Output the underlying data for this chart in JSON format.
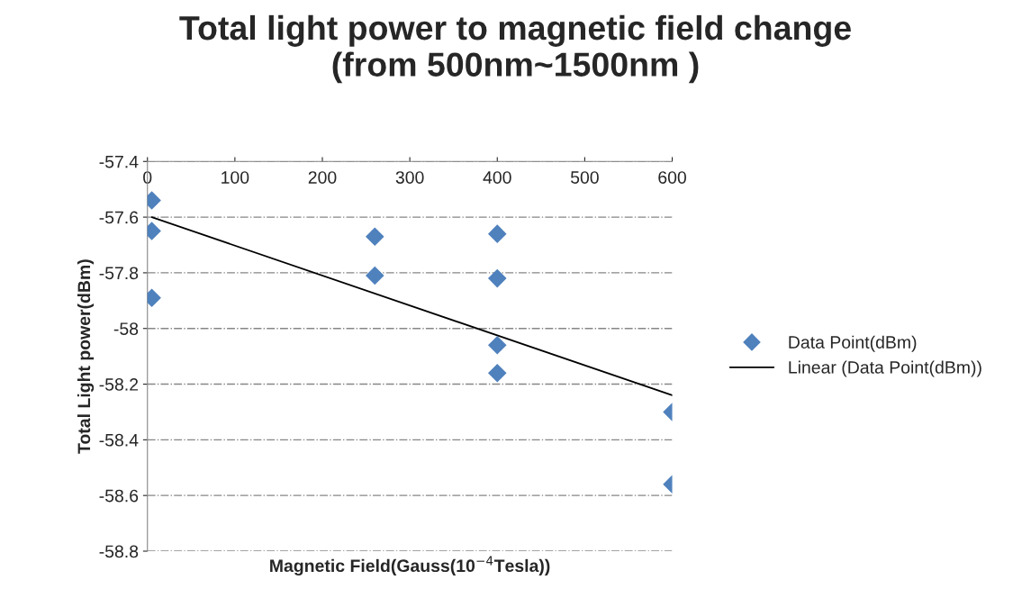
{
  "chart_data": {
    "type": "scatter",
    "title": "Total light power to magnetic field change\n(from 500nm~1500nm )",
    "xlabel": "Magnetic Field(Gauss(10$^{−4}$Tesla))",
    "ylabel": "Total Light power(dBm)",
    "xlim": [
      0,
      600
    ],
    "xticks": [
      0,
      100,
      200,
      300,
      400,
      500,
      600
    ],
    "ylim": [
      -58.8,
      -57.4
    ],
    "yticks": [
      -58.8,
      -58.6,
      -58.4,
      -58.2,
      -58,
      -57.8,
      -57.6,
      -57.4
    ],
    "grid": "y",
    "legend": "right",
    "series": [
      {
        "name": "Data Point(dBm)",
        "color": "#4f81bd",
        "marker": "diamond",
        "x": [
          5,
          5,
          5,
          260,
          260,
          400,
          400,
          400,
          400,
          600,
          600
        ],
        "values": [
          -57.54,
          -57.65,
          -57.89,
          -57.67,
          -57.81,
          -57.66,
          -57.82,
          -58.06,
          -58.16,
          -58.3,
          -58.56
        ]
      },
      {
        "name": "Linear (Data Point(dBm))",
        "type": "line",
        "marker": "none",
        "color": "#000000",
        "x": [
          5,
          600
        ],
        "values": [
          -57.6,
          -58.24
        ]
      }
    ]
  }
}
